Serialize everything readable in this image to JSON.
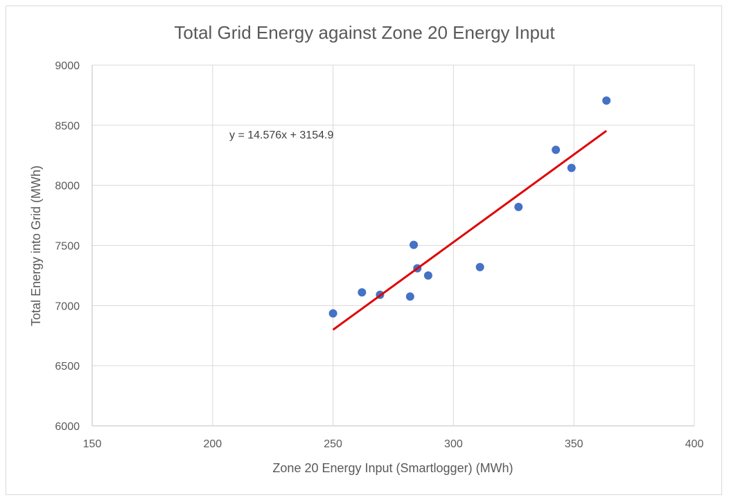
{
  "chart_data": {
    "type": "scatter",
    "title": "Total Grid Energy against Zone 20 Energy Input",
    "xlabel": "Zone 20 Energy Input (Smartlogger) (MWh)",
    "ylabel": "Total Energy into Grid (MWh)",
    "xlim": [
      150,
      400
    ],
    "ylim": [
      6000,
      9000
    ],
    "xticks": [
      150,
      200,
      250,
      300,
      350,
      400
    ],
    "yticks": [
      6000,
      6500,
      7000,
      7500,
      8000,
      8500,
      9000
    ],
    "grid": true,
    "legend": "none",
    "series": [
      {
        "color": "#4472c4",
        "points": [
          {
            "x": 250,
            "y": 6935
          },
          {
            "x": 262,
            "y": 7110
          },
          {
            "x": 269.5,
            "y": 7090
          },
          {
            "x": 282,
            "y": 7075
          },
          {
            "x": 283.5,
            "y": 7505
          },
          {
            "x": 285,
            "y": 7310
          },
          {
            "x": 289.5,
            "y": 7250
          },
          {
            "x": 311,
            "y": 7320
          },
          {
            "x": 327,
            "y": 7820
          },
          {
            "x": 342.5,
            "y": 8295
          },
          {
            "x": 349,
            "y": 8145
          },
          {
            "x": 363.5,
            "y": 8705
          }
        ]
      }
    ],
    "trendline": {
      "type": "linear",
      "slope": 14.576,
      "intercept": 3154.9,
      "x_range": [
        250,
        363.5
      ],
      "color": "#e00000",
      "equation_label": "y = 14.576x + 3154.9"
    }
  }
}
